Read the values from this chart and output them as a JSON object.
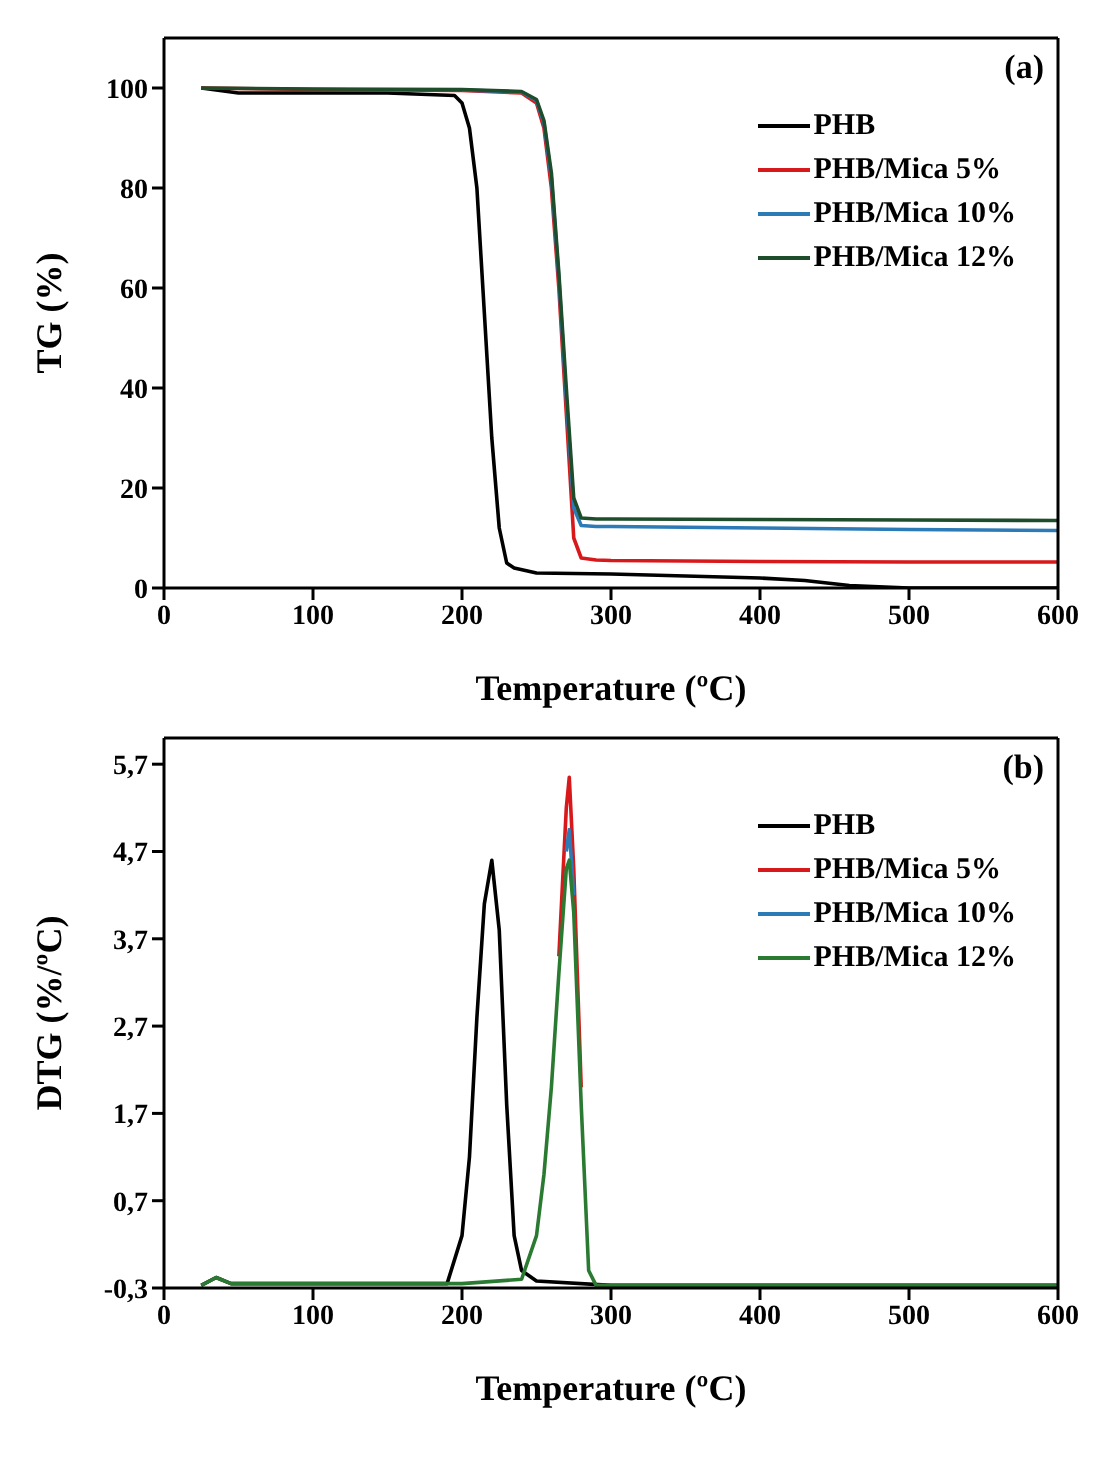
{
  "chart_data": [
    {
      "type": "line",
      "xlabel": "Temperature (ºC)",
      "ylabel": "TG (%)",
      "annotations": [
        "(a)"
      ],
      "xlim": [
        0,
        600
      ],
      "xticks": [
        0,
        100,
        200,
        300,
        400,
        500,
        600
      ],
      "ylim": [
        0,
        110
      ],
      "yticks": [
        0,
        20,
        40,
        60,
        80,
        100
      ],
      "legend": "top right",
      "line_style": "solid",
      "series": [
        {
          "name": "PHB",
          "color": "#000000",
          "x": [
            25,
            50,
            100,
            150,
            195,
            200,
            205,
            210,
            215,
            220,
            225,
            230,
            235,
            250,
            300,
            350,
            400,
            430,
            460,
            500,
            600
          ],
          "values": [
            100,
            99,
            99,
            99,
            98.5,
            97,
            92,
            80,
            55,
            30,
            12,
            5,
            4,
            3,
            2.8,
            2.4,
            2,
            1.5,
            0.5,
            0,
            0
          ]
        },
        {
          "name": "PHB/Mica 5%",
          "color": "#d7191c",
          "x": [
            25,
            100,
            200,
            240,
            250,
            255,
            260,
            265,
            270,
            275,
            280,
            290,
            300,
            400,
            500,
            600
          ],
          "values": [
            100,
            99.7,
            99.5,
            99,
            97,
            92,
            80,
            60,
            35,
            10,
            6,
            5.6,
            5.5,
            5.3,
            5.2,
            5.2
          ]
        },
        {
          "name": "PHB/Mica 10%",
          "color": "#2c7bb6",
          "x": [
            200,
            240,
            250,
            255,
            260,
            265,
            270,
            275,
            280,
            290,
            300,
            400,
            500,
            600
          ],
          "values": [
            99.6,
            99.2,
            97.5,
            93,
            82,
            62,
            38,
            16,
            12.5,
            12.3,
            12.3,
            12,
            11.7,
            11.5
          ]
        },
        {
          "name": "PHB/Mica 12%",
          "color": "#1e4d2b",
          "x": [
            25,
            100,
            200,
            240,
            250,
            255,
            260,
            265,
            270,
            275,
            280,
            290,
            300,
            400,
            500,
            600
          ],
          "values": [
            100,
            99.8,
            99.7,
            99.3,
            97.7,
            93.5,
            83,
            63,
            40,
            18,
            14,
            13.8,
            13.8,
            13.7,
            13.6,
            13.5
          ]
        }
      ]
    },
    {
      "type": "line",
      "xlabel": "Temperature (ºC)",
      "ylabel": "DTG (%/ºC)",
      "annotations": [
        "(b)"
      ],
      "xlim": [
        0,
        600
      ],
      "xticks": [
        0,
        100,
        200,
        300,
        400,
        500,
        600
      ],
      "ylim": [
        -0.3,
        6
      ],
      "yticks": [
        {
          "value": -0.3,
          "label": "-0,3"
        },
        {
          "value": 0.7,
          "label": "0,7"
        },
        {
          "value": 1.7,
          "label": "1,7"
        },
        {
          "value": 2.7,
          "label": "2,7"
        },
        {
          "value": 3.7,
          "label": "3,7"
        },
        {
          "value": 4.7,
          "label": "4,7"
        },
        {
          "value": 5.7,
          "label": "5,7"
        }
      ],
      "legend": "top right",
      "line_style": "solid",
      "series": [
        {
          "name": "PHB",
          "color": "#000000",
          "x": [
            25,
            35,
            45,
            100,
            190,
            200,
            205,
            210,
            215,
            220,
            225,
            230,
            235,
            240,
            250,
            300,
            400,
            600
          ],
          "values": [
            -0.27,
            -0.18,
            -0.25,
            -0.25,
            -0.25,
            0.3,
            1.2,
            2.8,
            4.1,
            4.6,
            3.8,
            1.8,
            0.3,
            -0.1,
            -0.22,
            -0.27,
            -0.27,
            -0.27
          ]
        },
        {
          "name": "PHB/Mica 5%",
          "color": "#d7191c",
          "x": [
            265,
            270,
            272,
            275,
            280
          ],
          "values": [
            3.5,
            5.2,
            5.55,
            4.5,
            2
          ]
        },
        {
          "name": "PHB/Mica 10%",
          "color": "#2c7bb6",
          "x": [
            270,
            272,
            275
          ],
          "values": [
            4.7,
            4.95,
            4.2
          ]
        },
        {
          "name": "PHB/Mica 12%",
          "color": "#2a7a32",
          "x": [
            25,
            35,
            45,
            100,
            200,
            240,
            250,
            255,
            260,
            265,
            270,
            272,
            275,
            280,
            285,
            290,
            400,
            600
          ],
          "values": [
            -0.27,
            -0.18,
            -0.25,
            -0.25,
            -0.25,
            -0.2,
            0.3,
            1,
            2,
            3.3,
            4.5,
            4.6,
            4,
            1.8,
            -0.1,
            -0.27,
            -0.27,
            -0.27
          ]
        }
      ]
    }
  ]
}
